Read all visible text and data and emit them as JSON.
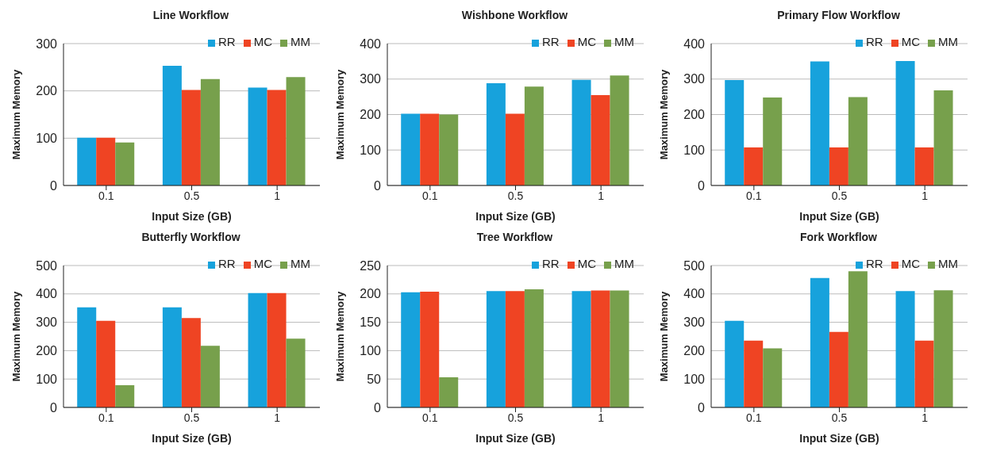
{
  "chart_data": [
    {
      "type": "bar",
      "title": "Line Workflow",
      "xlabel": "Input Size (GB)",
      "ylabel": "Maximum Memory",
      "categories": [
        "0.1",
        "0.5",
        "1"
      ],
      "ylim": [
        0,
        300
      ],
      "yticks": [
        0,
        100,
        200,
        300
      ],
      "grid": "y",
      "legend": "top right",
      "series": [
        {
          "name": "RR",
          "color": "#17a2dc",
          "values": [
            101,
            253,
            207
          ]
        },
        {
          "name": "MC",
          "color": "#ef4423",
          "values": [
            101,
            202,
            202
          ]
        },
        {
          "name": "MM",
          "color": "#77a04c",
          "values": [
            91,
            225,
            229
          ]
        }
      ]
    },
    {
      "type": "bar",
      "title": "Wishbone Workflow",
      "xlabel": "Input Size (GB)",
      "ylabel": "Maximum Memory",
      "categories": [
        "0.1",
        "0.5",
        "1"
      ],
      "ylim": [
        0,
        400
      ],
      "yticks": [
        0,
        100,
        200,
        300,
        400
      ],
      "grid": "y",
      "legend": "top right",
      "series": [
        {
          "name": "RR",
          "color": "#17a2dc",
          "values": [
            202,
            288,
            298
          ]
        },
        {
          "name": "MC",
          "color": "#ef4423",
          "values": [
            202,
            202,
            255
          ]
        },
        {
          "name": "MM",
          "color": "#77a04c",
          "values": [
            200,
            279,
            310
          ]
        }
      ]
    },
    {
      "type": "bar",
      "title": "Primary Flow Workflow",
      "xlabel": "Input Size (GB)",
      "ylabel": "Maximum Memory",
      "categories": [
        "0.1",
        "0.5",
        "1"
      ],
      "ylim": [
        0,
        400
      ],
      "yticks": [
        0,
        100,
        200,
        300,
        400
      ],
      "grid": "y",
      "legend": "top right",
      "series": [
        {
          "name": "RR",
          "color": "#17a2dc",
          "values": [
            297,
            350,
            351
          ]
        },
        {
          "name": "MC",
          "color": "#ef4423",
          "values": [
            107,
            107,
            107
          ]
        },
        {
          "name": "MM",
          "color": "#77a04c",
          "values": [
            248,
            249,
            268
          ]
        }
      ]
    },
    {
      "type": "bar",
      "title": "Butterfly Workflow",
      "xlabel": "Input Size (GB)",
      "ylabel": "Maximum Memory",
      "categories": [
        "0.1",
        "0.5",
        "1"
      ],
      "ylim": [
        0,
        500
      ],
      "yticks": [
        0,
        100,
        200,
        300,
        400,
        500
      ],
      "grid": "y",
      "legend": "top right",
      "series": [
        {
          "name": "RR",
          "color": "#17a2dc",
          "values": [
            353,
            353,
            403
          ]
        },
        {
          "name": "MC",
          "color": "#ef4423",
          "values": [
            305,
            315,
            403
          ]
        },
        {
          "name": "MM",
          "color": "#77a04c",
          "values": [
            78,
            217,
            242
          ]
        }
      ]
    },
    {
      "type": "bar",
      "title": "Tree Workflow",
      "xlabel": "Input Size (GB)",
      "ylabel": "Maximum Memory",
      "categories": [
        "0.1",
        "0.5",
        "1"
      ],
      "ylim": [
        0,
        250
      ],
      "yticks": [
        0,
        50,
        100,
        150,
        200,
        250
      ],
      "grid": "y",
      "legend": "top right",
      "series": [
        {
          "name": "RR",
          "color": "#17a2dc",
          "values": [
            203,
            205,
            205
          ]
        },
        {
          "name": "MC",
          "color": "#ef4423",
          "values": [
            204,
            205,
            206
          ]
        },
        {
          "name": "MM",
          "color": "#77a04c",
          "values": [
            53,
            208,
            206
          ]
        }
      ]
    },
    {
      "type": "bar",
      "title": "Fork Workflow",
      "xlabel": "Input Size (GB)",
      "ylabel": "Maximum Memory",
      "categories": [
        "0.1",
        "0.5",
        "1"
      ],
      "ylim": [
        0,
        500
      ],
      "yticks": [
        0,
        100,
        200,
        300,
        400,
        500
      ],
      "grid": "y",
      "legend": "top right",
      "series": [
        {
          "name": "RR",
          "color": "#17a2dc",
          "values": [
            305,
            456,
            410
          ]
        },
        {
          "name": "MC",
          "color": "#ef4423",
          "values": [
            235,
            266,
            235
          ]
        },
        {
          "name": "MM",
          "color": "#77a04c",
          "values": [
            208,
            480,
            413
          ]
        }
      ]
    }
  ]
}
